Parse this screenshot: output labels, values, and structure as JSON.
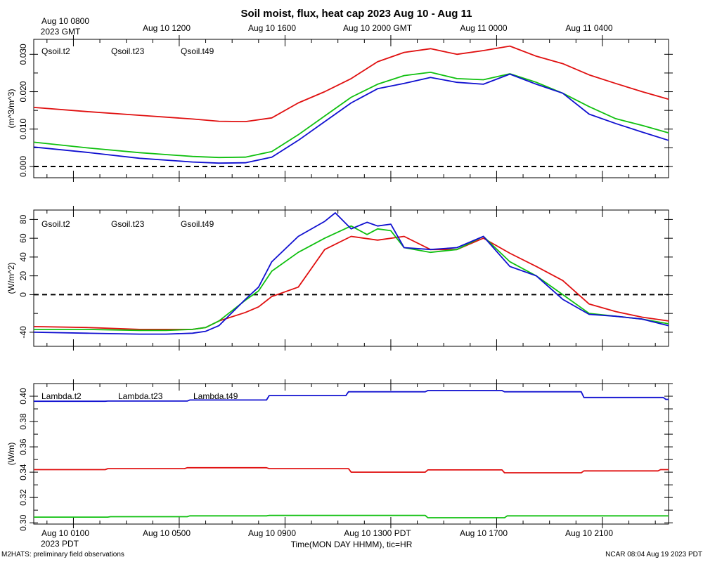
{
  "title": "Soil moist, flux, heat cap 2023 Aug 10 - Aug 11",
  "top_axis": {
    "first_label": [
      "Aug 10 0800",
      "2023 GMT"
    ],
    "labels": [
      "Aug 10 1200",
      "Aug 10 1600",
      "Aug 10 2000 GMT",
      "Aug 11 0000",
      "Aug 11 0400"
    ]
  },
  "bottom_axis": {
    "first_label": [
      "Aug 10 0100",
      "2023 PDT"
    ],
    "labels": [
      "Aug 10 0500",
      "Aug 10 0900",
      "Aug 10 1300 PDT",
      "Aug 10 1700",
      "Aug 10 2100"
    ],
    "xlabel": "Time(MON DAY HHMM), tic=HR"
  },
  "footer": {
    "left": "M2HATS: preliminary field observations",
    "right": "NCAR 08:04 Aug 19 2023 PDT"
  },
  "colors": {
    "t2": "#e01010",
    "t23": "#10c010",
    "t49": "#1010d0",
    "axis": "#000000"
  },
  "chart_data": [
    {
      "type": "line",
      "name": "soil-moisture",
      "ylabel": "(m^3/m^3)",
      "xlim": [
        0,
        24
      ],
      "ylim": [
        -0.003,
        0.034
      ],
      "yticks": [
        0.0,
        0.01,
        0.02,
        0.03
      ],
      "ytick_labels": [
        "0.000",
        "0.010",
        "0.020",
        "0.030"
      ],
      "minor_step": 0.005,
      "zero_line": true,
      "series": [
        {
          "name": "Qsoil.t2",
          "color": "#e01010",
          "x": [
            0,
            2,
            4,
            6,
            7,
            8,
            9,
            10,
            11,
            12,
            13,
            14,
            15,
            16,
            17,
            18,
            19,
            20,
            21,
            22,
            23,
            24
          ],
          "y": [
            0.0158,
            0.0147,
            0.0137,
            0.0127,
            0.0121,
            0.012,
            0.013,
            0.017,
            0.02,
            0.0235,
            0.028,
            0.0305,
            0.0315,
            0.03,
            0.031,
            0.0322,
            0.0295,
            0.0275,
            0.0245,
            0.0222,
            0.02,
            0.018
          ]
        },
        {
          "name": "Qsoil.t23",
          "color": "#10c010",
          "x": [
            0,
            2,
            4,
            6,
            7,
            8,
            9,
            10,
            11,
            12,
            13,
            14,
            15,
            16,
            17,
            18,
            19,
            20,
            21,
            22,
            23,
            24
          ],
          "y": [
            0.0065,
            0.005,
            0.0037,
            0.0027,
            0.0024,
            0.0025,
            0.004,
            0.0085,
            0.0135,
            0.0185,
            0.022,
            0.0243,
            0.0252,
            0.0235,
            0.0232,
            0.0248,
            0.0225,
            0.0196,
            0.016,
            0.0128,
            0.011,
            0.009
          ]
        },
        {
          "name": "Qsoil.t49",
          "color": "#1010d0",
          "x": [
            0,
            2,
            4,
            6,
            7,
            8,
            9,
            10,
            11,
            12,
            13,
            14,
            15,
            16,
            17,
            18,
            19,
            20,
            21,
            22,
            23,
            24
          ],
          "y": [
            0.0052,
            0.0038,
            0.0022,
            0.0012,
            0.0009,
            0.001,
            0.0025,
            0.007,
            0.012,
            0.017,
            0.0208,
            0.0222,
            0.0238,
            0.0225,
            0.022,
            0.0247,
            0.022,
            0.0196,
            0.014,
            0.0115,
            0.0092,
            0.007
          ]
        }
      ]
    },
    {
      "type": "line",
      "name": "soil-heat-flux",
      "ylabel": "(W/m^2)",
      "xlim": [
        0,
        24
      ],
      "ylim": [
        -55,
        90
      ],
      "yticks": [
        -40,
        0,
        20,
        40,
        60,
        80
      ],
      "ytick_labels": [
        "-40",
        "0",
        "20",
        "40",
        "60",
        "80"
      ],
      "minor_step": 20,
      "zero_line": true,
      "series": [
        {
          "name": "Gsoil.t2",
          "color": "#e01010",
          "x": [
            0,
            2,
            4,
            5,
            6,
            6.5,
            7,
            8,
            8.5,
            9,
            10,
            11,
            12,
            13,
            14,
            15,
            16,
            17,
            18,
            19,
            20,
            21,
            22,
            23,
            24
          ],
          "y": [
            -34,
            -35,
            -37,
            -37,
            -37,
            -35,
            -28,
            -19,
            -13,
            -2,
            8,
            48,
            62,
            58,
            62,
            48,
            48,
            60,
            44,
            30,
            15,
            -10,
            -18,
            -24,
            -28
          ]
        },
        {
          "name": "Gsoil.t23",
          "color": "#10c010",
          "x": [
            0,
            2,
            4,
            5,
            6,
            6.5,
            7,
            8,
            8.5,
            9,
            10,
            11,
            12,
            12.6,
            13,
            13.5,
            14,
            15,
            16,
            17,
            18,
            19,
            20,
            21,
            22,
            23,
            24
          ],
          "y": [
            -37,
            -37,
            -38,
            -38,
            -37,
            -35,
            -28,
            -6,
            4,
            25,
            45,
            60,
            73,
            64,
            70,
            68,
            50,
            45,
            48,
            62,
            35,
            20,
            0,
            -20,
            -23,
            -26,
            -31
          ]
        },
        {
          "name": "Gsoil.t49",
          "color": "#1010d0",
          "x": [
            0,
            2,
            4,
            5,
            6,
            6.5,
            7,
            8,
            8.5,
            9,
            10,
            11,
            11.4,
            12,
            12.6,
            13,
            13.5,
            14,
            15,
            16,
            17,
            18,
            19,
            20,
            21,
            22,
            23,
            24
          ],
          "y": [
            -40,
            -41,
            -42,
            -42,
            -41,
            -39,
            -33,
            -5,
            8,
            35,
            62,
            78,
            87,
            70,
            77,
            73,
            75,
            50,
            48,
            50,
            62,
            30,
            20,
            -5,
            -21,
            -23,
            -26,
            -33
          ]
        }
      ]
    },
    {
      "type": "line",
      "name": "thermal-conductivity",
      "ylabel": "(W/m)",
      "xlim": [
        0,
        24
      ],
      "ylim": [
        0.299,
        0.41
      ],
      "yticks": [
        0.3,
        0.32,
        0.34,
        0.36,
        0.38,
        0.4
      ],
      "ytick_labels": [
        "0.30",
        "0.32",
        "0.34",
        "0.36",
        "0.38",
        "0.40"
      ],
      "minor_step": 0.01,
      "zero_line": false,
      "series": [
        {
          "name": "Lambda.t2",
          "color": "#e01010",
          "x": [
            0,
            2.7,
            2.8,
            5.7,
            5.8,
            8.8,
            8.9,
            11.9,
            12.0,
            14.8,
            14.9,
            17.7,
            17.8,
            20.7,
            20.8,
            23.6,
            23.7,
            24
          ],
          "y": [
            0.342,
            0.342,
            0.3428,
            0.3428,
            0.3435,
            0.3435,
            0.3428,
            0.3428,
            0.34,
            0.34,
            0.3418,
            0.3418,
            0.3395,
            0.3395,
            0.341,
            0.341,
            0.342,
            0.342
          ]
        },
        {
          "name": "Lambda.t23",
          "color": "#10c010",
          "x": [
            0,
            2.8,
            2.9,
            5.8,
            5.9,
            8.8,
            8.9,
            14.8,
            14.9,
            17.8,
            17.9,
            24
          ],
          "y": [
            0.3045,
            0.3045,
            0.3048,
            0.3048,
            0.3055,
            0.3055,
            0.3058,
            0.3058,
            0.304,
            0.304,
            0.3055,
            0.3055
          ]
        },
        {
          "name": "Lambda.t49",
          "color": "#1010d0",
          "x": [
            0,
            2.7,
            2.8,
            5.8,
            5.9,
            8.8,
            8.9,
            11.8,
            11.9,
            14.8,
            14.9,
            17.7,
            17.8,
            20.7,
            20.8,
            23.8,
            23.9,
            24
          ],
          "y": [
            0.396,
            0.396,
            0.3962,
            0.3962,
            0.397,
            0.397,
            0.4005,
            0.4005,
            0.4035,
            0.4035,
            0.4045,
            0.4045,
            0.4035,
            0.4035,
            0.399,
            0.399,
            0.3975,
            0.3975
          ]
        }
      ]
    }
  ]
}
